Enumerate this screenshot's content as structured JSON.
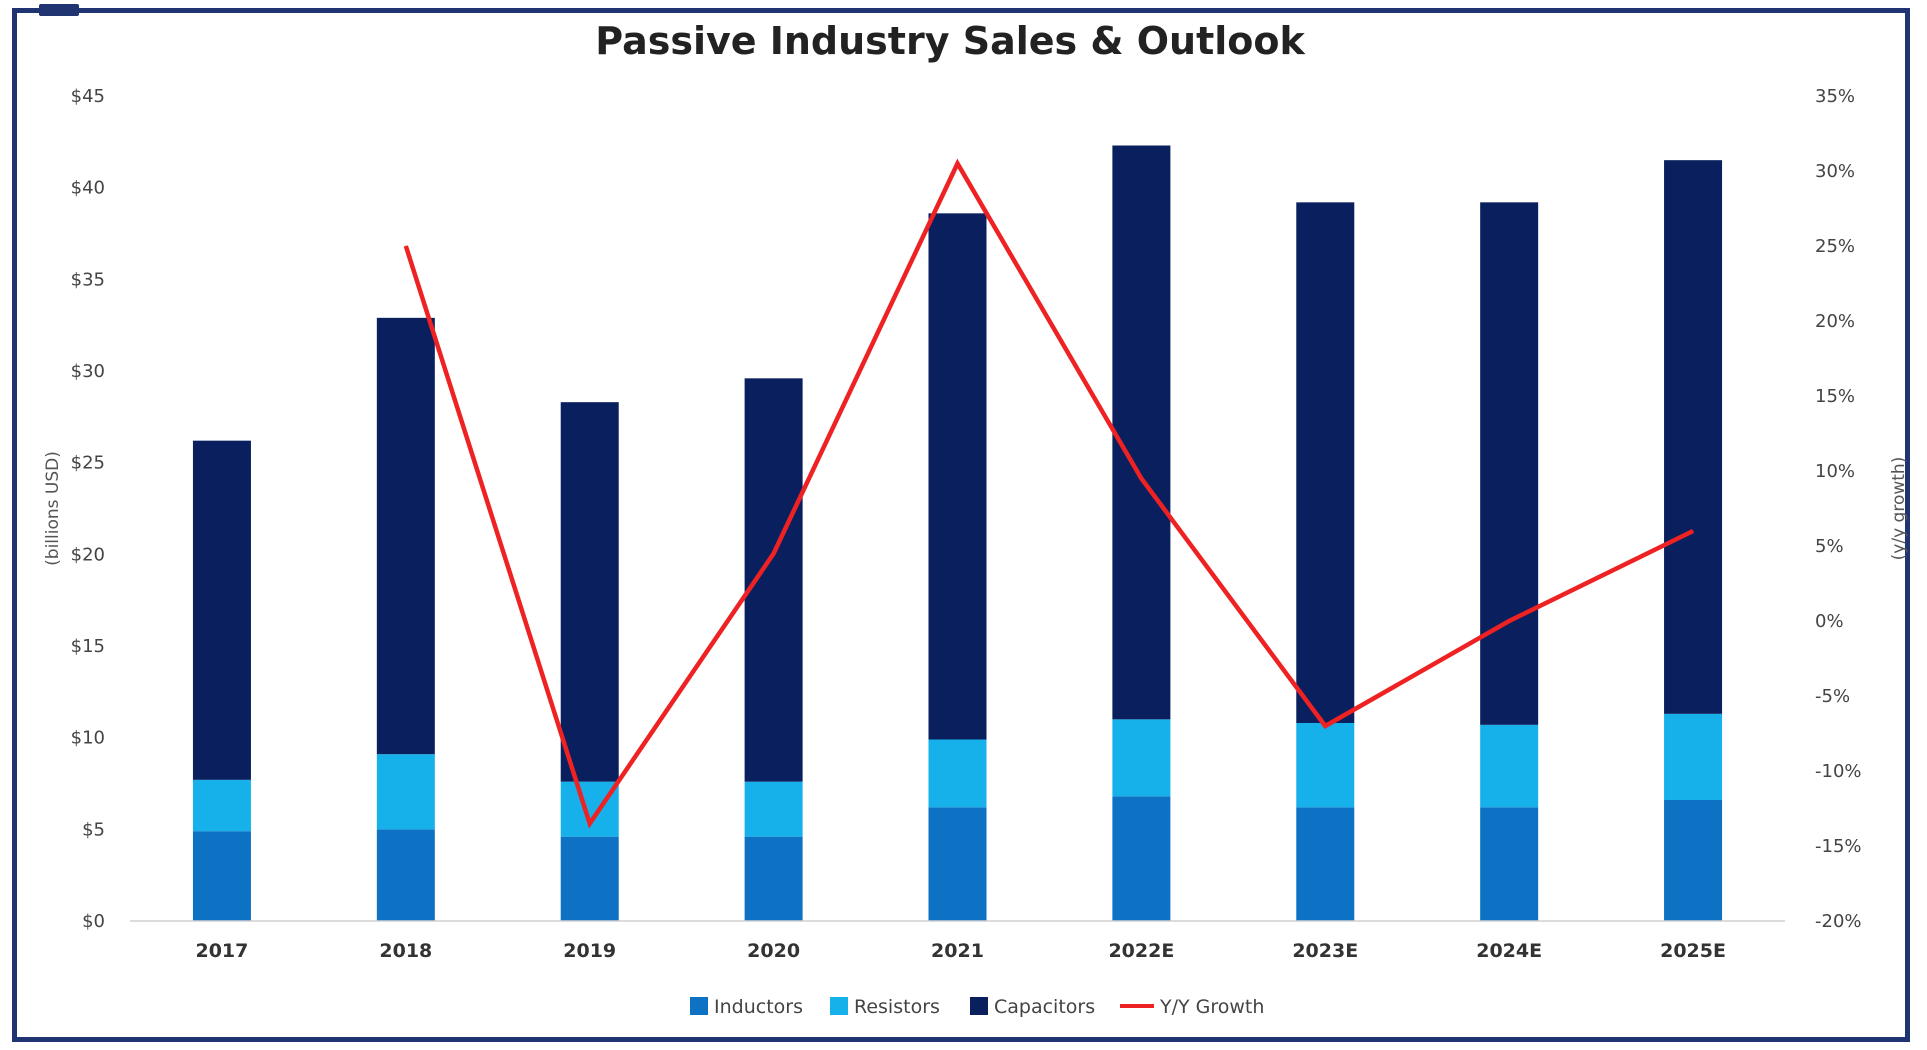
{
  "chart_data": {
    "type": "bar",
    "title": "Passive Industry Sales & Outlook",
    "categories": [
      "2017",
      "2018",
      "2019",
      "2020",
      "2021",
      "2022E",
      "2023E",
      "2024E",
      "2025E"
    ],
    "ylabel": "(billions USD)",
    "y2label": "(y/y growth)",
    "ylim": [
      0,
      45
    ],
    "y2lim": [
      -0.2,
      0.35
    ],
    "yticks": [
      "$0",
      "$5",
      "$10",
      "$15",
      "$20",
      "$25",
      "$30",
      "$35",
      "$40",
      "$45"
    ],
    "y2ticks": [
      "-20%",
      "-15%",
      "-10%",
      "-5%",
      "0%",
      "5%",
      "10%",
      "15%",
      "20%",
      "25%",
      "30%",
      "35%"
    ],
    "series": [
      {
        "name": "Inductors",
        "type": "bar",
        "stacked": true,
        "color": "#0d72c4",
        "values": [
          4.9,
          5.0,
          4.6,
          4.6,
          6.2,
          6.8,
          6.2,
          6.2,
          6.6
        ]
      },
      {
        "name": "Resistors",
        "type": "bar",
        "stacked": true,
        "color": "#16b0ea",
        "values": [
          2.8,
          4.1,
          3.0,
          3.0,
          3.7,
          4.2,
          4.6,
          4.5,
          4.7
        ]
      },
      {
        "name": "Capacitors",
        "type": "bar",
        "stacked": true,
        "color": "#0a1f5e",
        "values": [
          18.5,
          23.8,
          20.7,
          22.0,
          28.7,
          31.3,
          28.4,
          28.5,
          30.2
        ]
      },
      {
        "name": "Y/Y Growth",
        "type": "line",
        "axis": "right",
        "color": "#ee2222",
        "values": [
          null,
          0.25,
          -0.135,
          0.045,
          0.305,
          0.095,
          -0.07,
          0.0,
          0.06
        ]
      }
    ],
    "legend_position": "bottom",
    "grid": false
  }
}
